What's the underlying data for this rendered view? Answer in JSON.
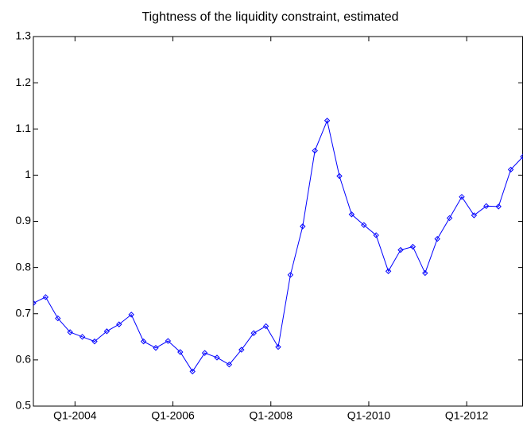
{
  "chart_data": {
    "type": "line",
    "title": "Tightness of the liquidity constraint, estimated",
    "x": [
      2003.15,
      2003.4,
      2003.65,
      2003.9,
      2004.15,
      2004.4,
      2004.65,
      2004.9,
      2005.15,
      2005.4,
      2005.65,
      2005.9,
      2006.15,
      2006.4,
      2006.65,
      2006.9,
      2007.15,
      2007.4,
      2007.65,
      2007.9,
      2008.15,
      2008.4,
      2008.65,
      2008.9,
      2009.15,
      2009.4,
      2009.65,
      2009.9,
      2010.15,
      2010.4,
      2010.65,
      2010.9,
      2011.15,
      2011.4,
      2011.65,
      2011.9,
      2012.15,
      2012.4,
      2012.65,
      2012.9,
      2013.15
    ],
    "series": [
      {
        "color": "#0000ff",
        "values": [
          0.723,
          0.736,
          0.69,
          0.66,
          0.65,
          0.64,
          0.662,
          0.677,
          0.698,
          0.64,
          0.626,
          0.641,
          0.617,
          0.575,
          0.615,
          0.605,
          0.59,
          0.622,
          0.658,
          0.673,
          0.628,
          0.784,
          0.889,
          1.053,
          1.118,
          0.998,
          0.915,
          0.892,
          0.87,
          0.792,
          0.838,
          0.845,
          0.788,
          0.862,
          0.907,
          0.953,
          0.913,
          0.933,
          0.932,
          1.012,
          1.04
        ]
      }
    ],
    "xlim": [
      2003.15,
      2013.15
    ],
    "xticks": [
      {
        "value": 2004,
        "label": "Q1-2004"
      },
      {
        "value": 2006,
        "label": "Q1-2006"
      },
      {
        "value": 2008,
        "label": "Q1-2008"
      },
      {
        "value": 2010,
        "label": "Q1-2010"
      },
      {
        "value": 2012,
        "label": "Q1-2012"
      }
    ],
    "ylim": [
      0.5,
      1.3
    ],
    "yticks": [
      0.5,
      0.6,
      0.7,
      0.8,
      0.9,
      1,
      1.1,
      1.2,
      1.3
    ],
    "grid": false
  }
}
